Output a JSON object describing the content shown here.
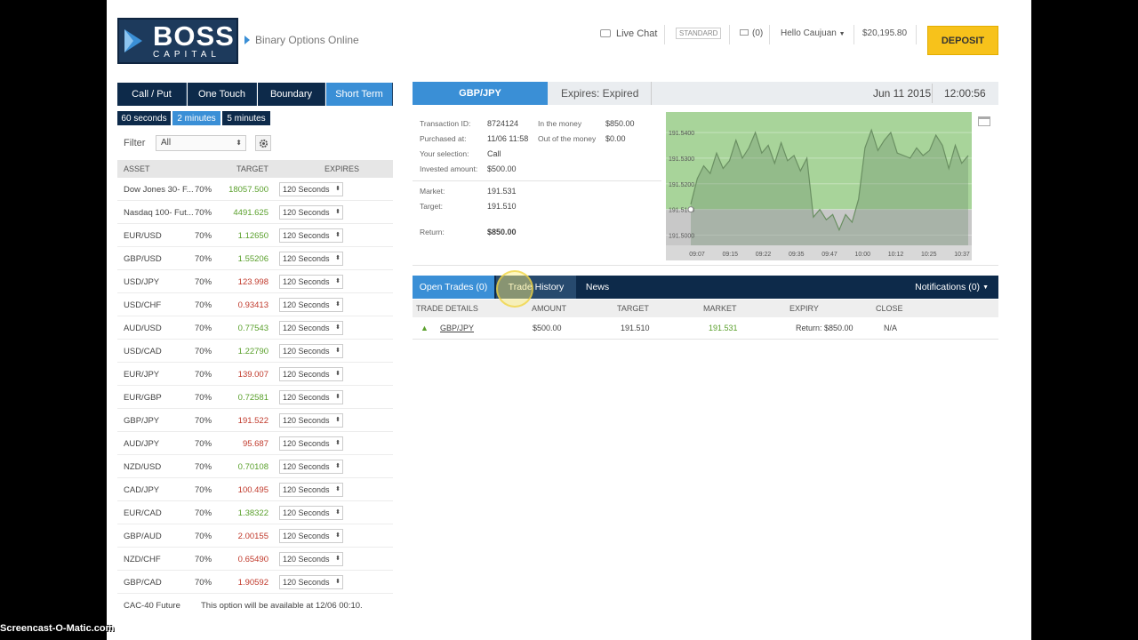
{
  "header": {
    "logo_word1": "BOSS",
    "logo_word2": "CAPITAL",
    "tagline": "Binary Options Online",
    "live_chat": "Live Chat",
    "account_type": "STANDARD",
    "messages": "(0)",
    "greeting": "Hello Caujuan",
    "balance": "$20,195.80",
    "deposit": "DEPOSIT"
  },
  "option_tabs": [
    "Call / Put",
    "One Touch",
    "Boundary",
    "Short Term"
  ],
  "time_tabs": [
    "60 seconds",
    "2 minutes",
    "5 minutes"
  ],
  "filter": {
    "label": "Filter",
    "value": "All"
  },
  "asset_table": {
    "headers": [
      "ASSET",
      "TARGET",
      "EXPIRES"
    ],
    "rows": [
      {
        "name": "Dow Jones 30- F...",
        "pct": "70%",
        "target": "18057.500",
        "dir": "up",
        "expires": "120 Seconds"
      },
      {
        "name": "Nasdaq 100- Fut...",
        "pct": "70%",
        "target": "4491.625",
        "dir": "up",
        "expires": "120 Seconds"
      },
      {
        "name": "EUR/USD",
        "pct": "70%",
        "target": "1.12650",
        "dir": "up",
        "expires": "120 Seconds"
      },
      {
        "name": "GBP/USD",
        "pct": "70%",
        "target": "1.55206",
        "dir": "up",
        "expires": "120 Seconds"
      },
      {
        "name": "USD/JPY",
        "pct": "70%",
        "target": "123.998",
        "dir": "down",
        "expires": "120 Seconds"
      },
      {
        "name": "USD/CHF",
        "pct": "70%",
        "target": "0.93413",
        "dir": "down",
        "expires": "120 Seconds"
      },
      {
        "name": "AUD/USD",
        "pct": "70%",
        "target": "0.77543",
        "dir": "up",
        "expires": "120 Seconds"
      },
      {
        "name": "USD/CAD",
        "pct": "70%",
        "target": "1.22790",
        "dir": "up",
        "expires": "120 Seconds"
      },
      {
        "name": "EUR/JPY",
        "pct": "70%",
        "target": "139.007",
        "dir": "down",
        "expires": "120 Seconds"
      },
      {
        "name": "EUR/GBP",
        "pct": "70%",
        "target": "0.72581",
        "dir": "up",
        "expires": "120 Seconds"
      },
      {
        "name": "GBP/JPY",
        "pct": "70%",
        "target": "191.522",
        "dir": "down",
        "expires": "120 Seconds"
      },
      {
        "name": "AUD/JPY",
        "pct": "70%",
        "target": "95.687",
        "dir": "down",
        "expires": "120 Seconds"
      },
      {
        "name": "NZD/USD",
        "pct": "70%",
        "target": "0.70108",
        "dir": "up",
        "expires": "120 Seconds"
      },
      {
        "name": "CAD/JPY",
        "pct": "70%",
        "target": "100.495",
        "dir": "down",
        "expires": "120 Seconds"
      },
      {
        "name": "EUR/CAD",
        "pct": "70%",
        "target": "1.38322",
        "dir": "up",
        "expires": "120 Seconds"
      },
      {
        "name": "GBP/AUD",
        "pct": "70%",
        "target": "2.00155",
        "dir": "down",
        "expires": "120 Seconds"
      },
      {
        "name": "NZD/CHF",
        "pct": "70%",
        "target": "0.65490",
        "dir": "down",
        "expires": "120 Seconds"
      },
      {
        "name": "GBP/CAD",
        "pct": "70%",
        "target": "1.90592",
        "dir": "down",
        "expires": "120 Seconds"
      }
    ],
    "footer_asset": "CAC-40 Future",
    "footer_msg": "This option will be available at 12/06 00:10."
  },
  "trade": {
    "pair": "GBP/JPY",
    "expires": "Expires: Expired",
    "date": "Jun 11 2015",
    "time": "12:00:56",
    "details": {
      "transaction_id_label": "Transaction ID:",
      "transaction_id": "8724124",
      "purchased_label": "Purchased at:",
      "purchased": "11/06 11:58",
      "selection_label": "Your selection:",
      "selection": "Call",
      "invested_label": "Invested amount:",
      "invested": "$500.00",
      "in_money_label": "In the money",
      "in_money": "$850.00",
      "out_money_label": "Out of the money",
      "out_money": "$0.00",
      "market_label": "Market:",
      "market": "191.531",
      "target_label": "Target:",
      "target": "191.510",
      "return_label": "Return:",
      "return": "$850.00"
    }
  },
  "chart_data": {
    "type": "line",
    "y_ticks": [
      "191.5400",
      "191.5300",
      "191.5200",
      "191.5100",
      "191.5000"
    ],
    "x_ticks": [
      "09:07",
      "09:15",
      "09:22",
      "09:35",
      "09:47",
      "10:00",
      "10:12",
      "10:25",
      "10:37"
    ],
    "ylim": [
      191.496,
      191.548
    ],
    "target_level": 191.51,
    "y": [
      191.512,
      191.522,
      191.527,
      191.524,
      191.532,
      191.526,
      191.529,
      191.537,
      191.53,
      191.534,
      191.54,
      191.532,
      191.535,
      191.528,
      191.536,
      191.529,
      191.531,
      191.525,
      191.53,
      191.507,
      191.51,
      191.506,
      191.508,
      191.502,
      191.508,
      191.505,
      191.514,
      191.534,
      191.541,
      191.533,
      191.537,
      191.54,
      191.532,
      191.531,
      191.53,
      191.534,
      191.531,
      191.533,
      191.539,
      191.535,
      191.526,
      191.535,
      191.528,
      191.531
    ]
  },
  "lower_tabs": [
    "Open Trades (0)",
    "Trade History",
    "News"
  ],
  "notifications": "Notifications (0)",
  "trade_table": {
    "headers": [
      "TRADE DETAILS",
      "AMOUNT",
      "TARGET",
      "MARKET",
      "EXPIRY",
      "CLOSE"
    ],
    "row": {
      "asset": "GBP/JPY",
      "amount": "$500.00",
      "target": "191.510",
      "market": "191.531",
      "expiry": "Return: $850.00",
      "close": "N/A"
    }
  },
  "watermark": "Screencast-O-Matic.com",
  "colors": {
    "navy": "#0d2a4a",
    "accent": "#3a8fd6",
    "deposit": "#f7c21b",
    "up": "#5aa02c",
    "down": "#c0392b"
  }
}
